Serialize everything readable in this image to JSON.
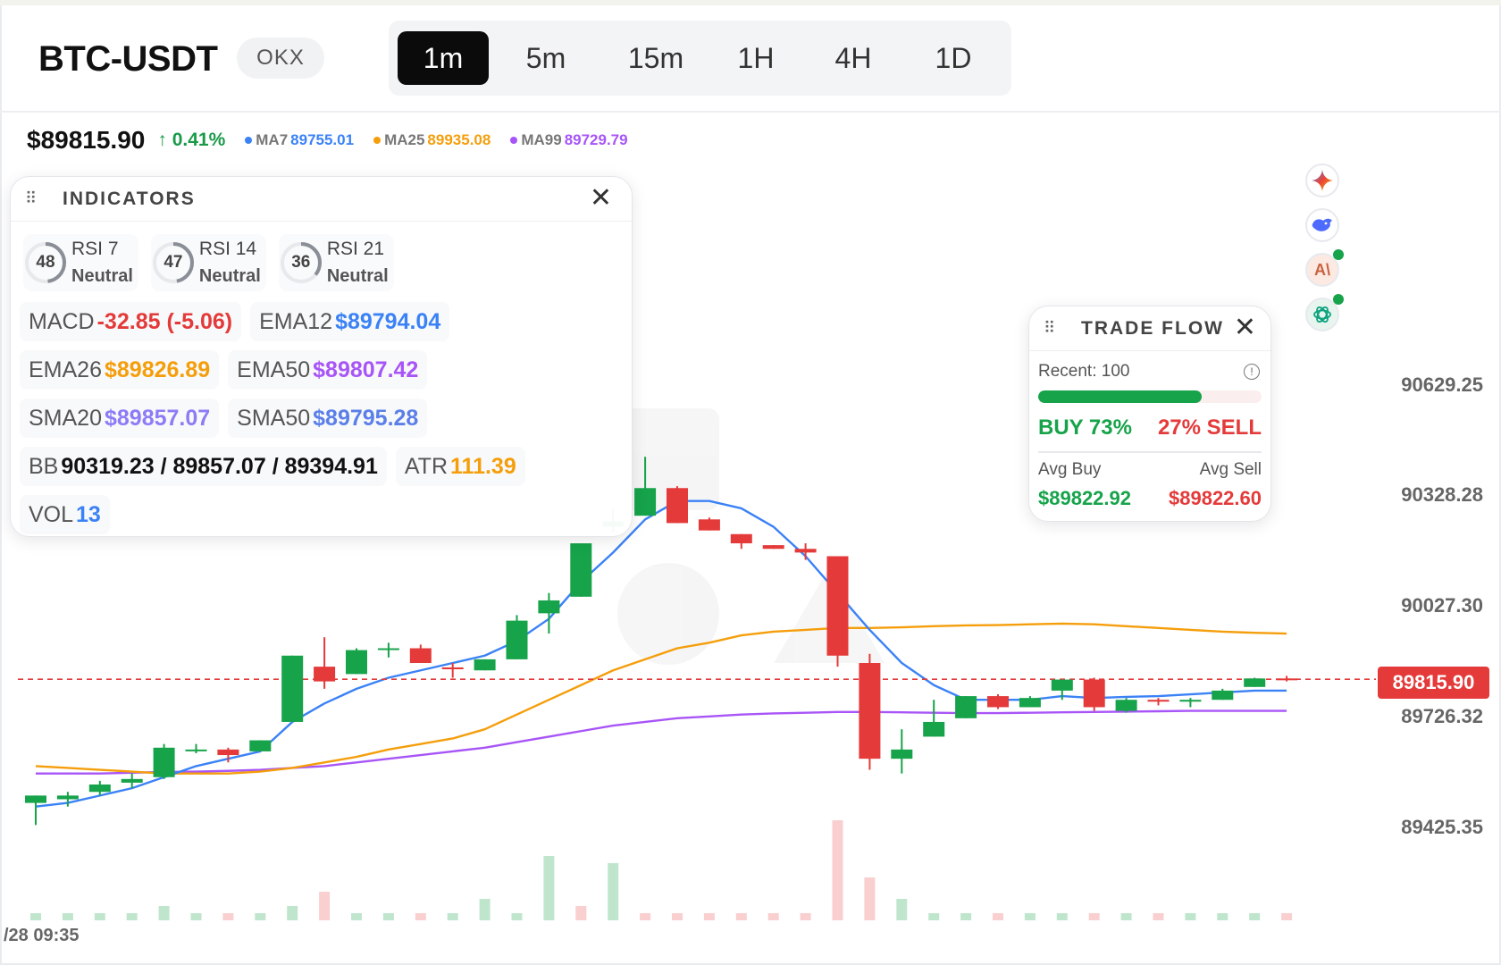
{
  "header": {
    "symbol": "BTC-USDT",
    "exchange": "OKX",
    "intervals": [
      "1m",
      "5m",
      "15m",
      "1H",
      "4H",
      "1D"
    ],
    "active_interval": "1m"
  },
  "stats": {
    "price": "$89815.90",
    "change": "↑ 0.41%",
    "ma7_label": "MA7",
    "ma7_value": "89755.01",
    "ma25_label": "MA25",
    "ma25_value": "89935.08",
    "ma99_label": "MA99",
    "ma99_value": "89729.79"
  },
  "colors": {
    "up": "#16a34a",
    "down": "#e43a3a",
    "ma7": "#3b82f6",
    "ma25": "#f59e0b",
    "ma99": "#a855f7"
  },
  "indicators": {
    "title": "INDICATORS",
    "rsi": [
      {
        "value": "48",
        "name": "RSI 7",
        "state": "Neutral"
      },
      {
        "value": "47",
        "name": "RSI 14",
        "state": "Neutral"
      },
      {
        "value": "36",
        "name": "RSI 21",
        "state": "Neutral"
      }
    ],
    "macd_label": "MACD",
    "macd_value": "-32.85 (-5.06)",
    "ema12_label": "EMA12",
    "ema12_value": "$89794.04",
    "ema26_label": "EMA26",
    "ema26_value": "$89826.89",
    "ema50_label": "EMA50",
    "ema50_value": "$89807.42",
    "sma20_label": "SMA20",
    "sma20_value": "$89857.07",
    "sma50_label": "SMA50",
    "sma50_value": "$89795.28",
    "bb_label": "BB",
    "bb_value": "90319.23 / 89857.07 / 89394.91",
    "atr_label": "ATR",
    "atr_value": "111.39",
    "vol_label": "VOL",
    "vol_value": "13"
  },
  "trade_flow": {
    "title": "TRADE FLOW",
    "recent": "Recent: 100",
    "buy_fraction": 0.73,
    "buy": "BUY 73%",
    "sell": "27% SELL",
    "avg_buy_label": "Avg Buy",
    "avg_sell_label": "Avg Sell",
    "avg_buy": "$89822.92",
    "avg_sell": "$89822.60"
  },
  "price_axis": [
    "90629.25",
    "90328.28",
    "90027.30",
    "89726.32",
    "89425.35"
  ],
  "last_price_tag": "89815.90",
  "time_label": "/28 09:35",
  "ai_icons": [
    "gemini-icon",
    "deepseek-icon",
    "anthropic-icon",
    "openai-icon"
  ],
  "chart_data": {
    "type": "candlestick",
    "price_axis_ticks": [
      90629.25,
      90328.28,
      90027.3,
      89726.32,
      89425.35
    ],
    "last_price": 89815.9,
    "candles": [
      {
        "o": 89480,
        "h": 89500,
        "l": 89420,
        "c": 89500
      },
      {
        "o": 89490,
        "h": 89510,
        "l": 89470,
        "c": 89500
      },
      {
        "o": 89510,
        "h": 89540,
        "l": 89500,
        "c": 89530
      },
      {
        "o": 89535,
        "h": 89560,
        "l": 89520,
        "c": 89545
      },
      {
        "o": 89550,
        "h": 89640,
        "l": 89545,
        "c": 89630
      },
      {
        "o": 89625,
        "h": 89640,
        "l": 89615,
        "c": 89625
      },
      {
        "o": 89625,
        "h": 89630,
        "l": 89590,
        "c": 89610
      },
      {
        "o": 89620,
        "h": 89650,
        "l": 89620,
        "c": 89650
      },
      {
        "o": 89700,
        "h": 89880,
        "l": 89700,
        "c": 89880
      },
      {
        "o": 89850,
        "h": 89930,
        "l": 89790,
        "c": 89810
      },
      {
        "o": 89830,
        "h": 89900,
        "l": 89830,
        "c": 89895
      },
      {
        "o": 89900,
        "h": 89915,
        "l": 89875,
        "c": 89900
      },
      {
        "o": 89900,
        "h": 89910,
        "l": 89860,
        "c": 89860
      },
      {
        "o": 89848,
        "h": 89860,
        "l": 89820,
        "c": 89843
      },
      {
        "o": 89840,
        "h": 89870,
        "l": 89840,
        "c": 89870
      },
      {
        "o": 89870,
        "h": 89990,
        "l": 89870,
        "c": 89975
      },
      {
        "o": 89995,
        "h": 90050,
        "l": 89940,
        "c": 90030
      },
      {
        "o": 90040,
        "h": 90185,
        "l": 90040,
        "c": 90185
      },
      {
        "o": 90230,
        "h": 90280,
        "l": 90215,
        "c": 90245
      },
      {
        "o": 90260,
        "h": 90420,
        "l": 90260,
        "c": 90335
      },
      {
        "o": 90335,
        "h": 90340,
        "l": 90240,
        "c": 90240
      },
      {
        "o": 90250,
        "h": 90255,
        "l": 90220,
        "c": 90220
      },
      {
        "o": 90210,
        "h": 90210,
        "l": 90170,
        "c": 90185
      },
      {
        "o": 90180,
        "h": 90180,
        "l": 90170,
        "c": 90170
      },
      {
        "o": 90170,
        "h": 90185,
        "l": 90140,
        "c": 90160
      },
      {
        "o": 90150,
        "h": 90150,
        "l": 89850,
        "c": 89880
      },
      {
        "o": 89860,
        "h": 89885,
        "l": 89570,
        "c": 89600
      },
      {
        "o": 89600,
        "h": 89680,
        "l": 89560,
        "c": 89625
      },
      {
        "o": 89660,
        "h": 89760,
        "l": 89660,
        "c": 89700
      },
      {
        "o": 89710,
        "h": 89770,
        "l": 89710,
        "c": 89770
      },
      {
        "o": 89770,
        "h": 89775,
        "l": 89735,
        "c": 89740
      },
      {
        "o": 89740,
        "h": 89770,
        "l": 89740,
        "c": 89765
      },
      {
        "o": 89785,
        "h": 89815,
        "l": 89760,
        "c": 89815
      },
      {
        "o": 89815,
        "h": 89820,
        "l": 89730,
        "c": 89740
      },
      {
        "o": 89730,
        "h": 89765,
        "l": 89725,
        "c": 89760
      },
      {
        "o": 89760,
        "h": 89765,
        "l": 89745,
        "c": 89755
      },
      {
        "o": 89755,
        "h": 89765,
        "l": 89740,
        "c": 89760
      },
      {
        "o": 89760,
        "h": 89790,
        "l": 89760,
        "c": 89785
      },
      {
        "o": 89795,
        "h": 89820,
        "l": 89795,
        "c": 89818
      },
      {
        "o": 89818,
        "h": 89825,
        "l": 89810,
        "c": 89815
      }
    ],
    "volumes": [
      1,
      1,
      1,
      1,
      2,
      1,
      1,
      1,
      2,
      4,
      1,
      1,
      1,
      1,
      3,
      1,
      9,
      2,
      8,
      1,
      1,
      1,
      1,
      1,
      1,
      14,
      6,
      3,
      1,
      1,
      1,
      1,
      1,
      1,
      1,
      1,
      1,
      1,
      1,
      1
    ],
    "volume_directions": [
      "up",
      "up",
      "up",
      "up",
      "up",
      "up",
      "down",
      "up",
      "up",
      "down",
      "up",
      "up",
      "down",
      "up",
      "up",
      "up",
      "up",
      "down",
      "up",
      "down",
      "down",
      "down",
      "down",
      "down",
      "down",
      "down",
      "down",
      "up",
      "up",
      "up",
      "down",
      "up",
      "up",
      "down",
      "up",
      "down",
      "up",
      "up",
      "up",
      "down"
    ],
    "ma7": [
      89470,
      89480,
      89500,
      89520,
      89550,
      89580,
      89600,
      89620,
      89700,
      89750,
      89790,
      89820,
      89840,
      89860,
      89880,
      89920,
      89980,
      90080,
      90160,
      90250,
      90300,
      90300,
      90280,
      90230,
      90150,
      90050,
      89950,
      89860,
      89800,
      89760,
      89760,
      89760,
      89770,
      89765,
      89768,
      89770,
      89775,
      89780,
      89785,
      89785
    ],
    "ma25": [
      89580,
      89575,
      89570,
      89565,
      89560,
      89560,
      89560,
      89565,
      89575,
      89590,
      89605,
      89625,
      89640,
      89655,
      89680,
      89720,
      89760,
      89800,
      89840,
      89870,
      89900,
      89915,
      89935,
      89945,
      89950,
      89955,
      89955,
      89957,
      89960,
      89962,
      89963,
      89965,
      89967,
      89965,
      89960,
      89955,
      89950,
      89945,
      89942,
      89940
    ],
    "ma99": [
      89560,
      89560,
      89560,
      89562,
      89564,
      89565,
      89567,
      89570,
      89575,
      89580,
      89590,
      89600,
      89610,
      89620,
      89630,
      89645,
      89660,
      89675,
      89690,
      89700,
      89710,
      89715,
      89720,
      89723,
      89725,
      89727,
      89727,
      89726,
      89725,
      89724,
      89724,
      89725,
      89726,
      89727,
      89728,
      89729,
      89730,
      89730,
      89730,
      89730
    ]
  }
}
